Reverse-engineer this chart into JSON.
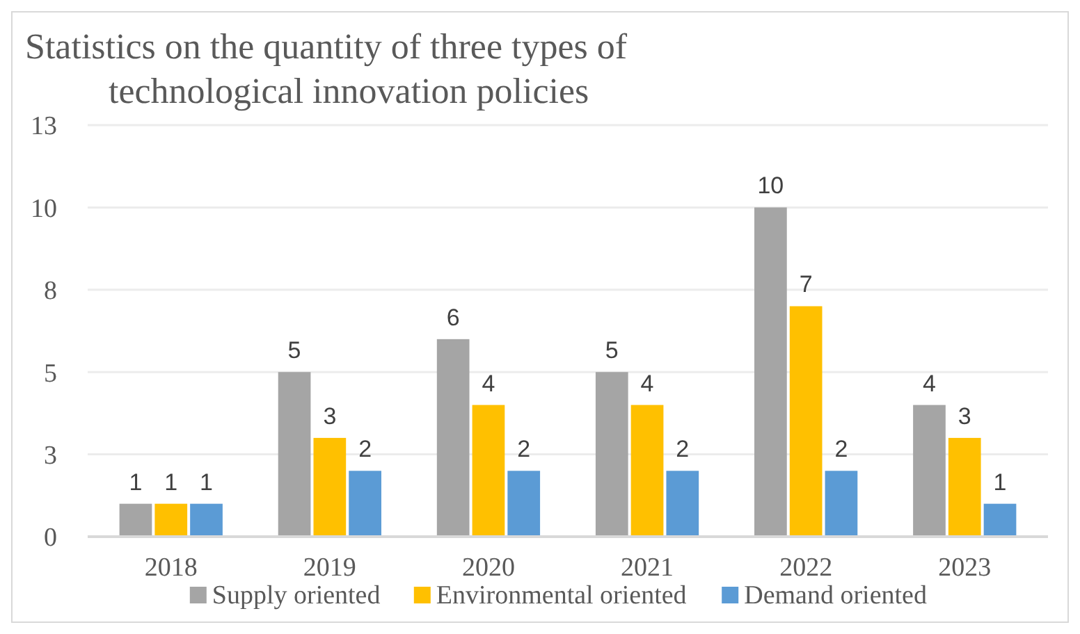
{
  "chart_data": {
    "type": "bar",
    "title": "Statistics on the quantity of three types of technological innovation policies",
    "categories": [
      "2018",
      "2019",
      "2020",
      "2021",
      "2022",
      "2023"
    ],
    "series": [
      {
        "name": "Supply oriented",
        "color": "#a5a5a5",
        "values": [
          1,
          5,
          6,
          5,
          10,
          4
        ]
      },
      {
        "name": "Environmental oriented",
        "color": "#ffc000",
        "values": [
          1,
          3,
          4,
          4,
          7,
          3
        ]
      },
      {
        "name": "Demand oriented",
        "color": "#5b9bd5",
        "values": [
          1,
          2,
          2,
          2,
          2,
          1
        ]
      }
    ],
    "ylim": [
      0,
      12.5
    ],
    "yticks": [
      0,
      {
        "value": 2.5,
        "label": "3"
      },
      5,
      {
        "value": 7.5,
        "label": "8"
      },
      10,
      {
        "value": 12.5,
        "label": "13"
      }
    ],
    "grid": "y",
    "legend": "bottom",
    "data_labels": true
  }
}
